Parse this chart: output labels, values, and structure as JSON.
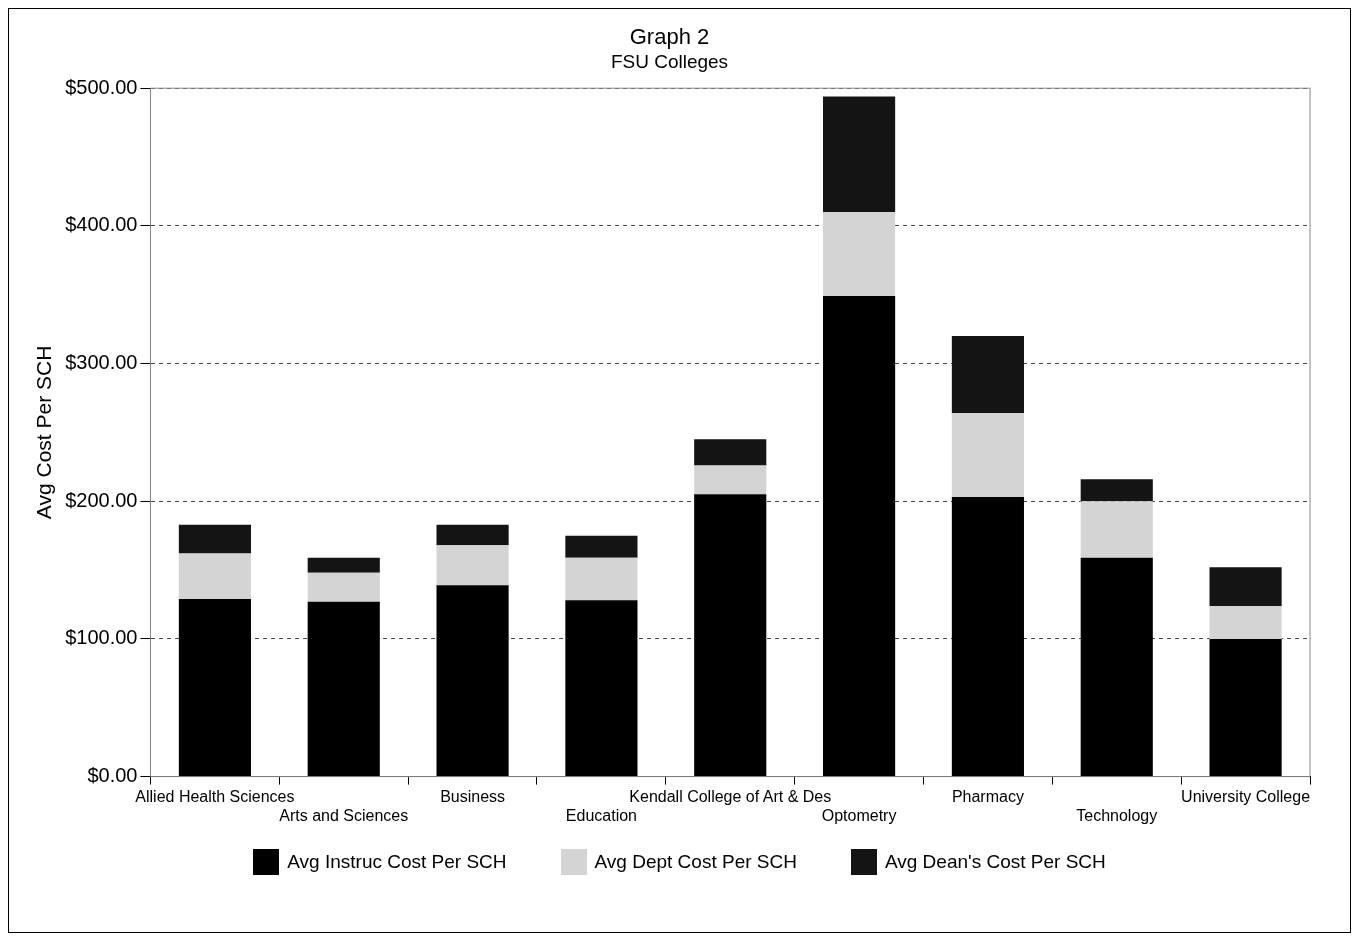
{
  "chart_data": {
    "type": "bar",
    "title": "Graph 2",
    "subtitle": "FSU Colleges",
    "ylabel": "Avg Cost Per SCH",
    "categories": [
      "Allied Health Sciences",
      "Arts and Sciences",
      "Business",
      "Education",
      "Kendall College of Art & Des",
      "Optometry",
      "Pharmacy",
      "Technology",
      "University College"
    ],
    "stacked": true,
    "series": [
      {
        "name": "Avg Instruc Cost Per SCH",
        "color": "#000000",
        "values": [
          129,
          127,
          139,
          128,
          205,
          349,
          203,
          159,
          100
        ]
      },
      {
        "name": "Avg Dept Cost Per SCH",
        "color": "#d4d4d4",
        "values": [
          33,
          21,
          29,
          31,
          21,
          61,
          61,
          41,
          24
        ]
      },
      {
        "name": "Avg Dean's Cost Per SCH",
        "color": "#141414",
        "values": [
          21,
          11,
          15,
          16,
          19,
          84,
          56,
          16,
          28
        ]
      }
    ],
    "ylim": [
      0,
      500
    ],
    "yticks": [
      {
        "value": 0,
        "label": "$0.00"
      },
      {
        "value": 100,
        "label": "$100.00"
      },
      {
        "value": 200,
        "label": "$200.00"
      },
      {
        "value": 300,
        "label": "$300.00"
      },
      {
        "value": 400,
        "label": "$400.00"
      },
      {
        "value": 500,
        "label": "$500.00"
      }
    ],
    "grid": "y",
    "legend": "bottom"
  }
}
